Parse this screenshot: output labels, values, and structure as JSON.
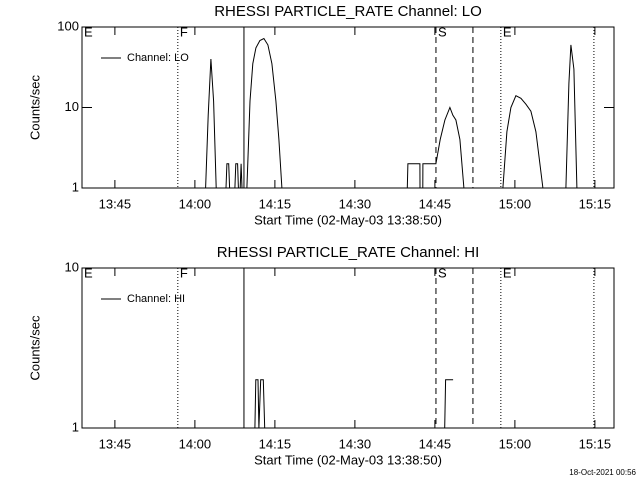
{
  "chart_data": [
    {
      "type": "line",
      "title": "RHESSI PARTICLE_RATE Channel: LO",
      "xlabel": "Start Time (02-May-03 13:38:50)",
      "ylabel": "Counts/sec",
      "log_y": true,
      "x": [
        "13:38:50",
        "14:02:00",
        "14:02:30",
        "14:03:00",
        "14:03:30",
        "14:04:00",
        "14:05:50",
        "14:06:00",
        "14:06:20",
        "14:06:30",
        "14:07:30",
        "14:07:40",
        "14:08:00",
        "14:08:10",
        "14:08:30",
        "14:08:40",
        "14:08:50",
        "14:09:45",
        "14:10:20",
        "14:10:52",
        "14:11:26",
        "14:12:11",
        "14:12:56",
        "14:13:41",
        "14:14:26",
        "14:15:11",
        "14:15:45",
        "14:16:19",
        "14:39:50",
        "14:39:56",
        "14:42:11",
        "14:42:12",
        "14:42:44",
        "14:42:45",
        "14:45:11",
        "14:46:00",
        "14:46:53",
        "14:47:49",
        "14:48:23",
        "14:48:56",
        "14:49:41",
        "14:50:26",
        "14:57:45",
        "14:58:30",
        "14:59:15",
        "15:00:11",
        "15:01:08",
        "15:02:04",
        "15:03:00",
        "15:03:56",
        "15:04:41",
        "15:05:15",
        "15:09:34",
        "15:10:08",
        "15:10:30",
        "15:11:04",
        "15:11:38",
        "15:18:35"
      ],
      "series": [
        {
          "name": "Channel: LO",
          "color": "#000000",
          "values": [
            1,
            1,
            8,
            40,
            12,
            1,
            1,
            2,
            2,
            1,
            1,
            2,
            2,
            1,
            1,
            2,
            1,
            1,
            12,
            35,
            55,
            68,
            72,
            60,
            35,
            12,
            4,
            1,
            1,
            2,
            2,
            1,
            1,
            2,
            2,
            4,
            7,
            10,
            8,
            7,
            4,
            1,
            1,
            5,
            10,
            14,
            13,
            11,
            9,
            5,
            2,
            1,
            1,
            20,
            60,
            30,
            1,
            1
          ]
        }
      ],
      "xlim": [
        "13:38:50",
        "15:18:35"
      ],
      "xticks": [
        "13:45",
        "14:00",
        "14:15",
        "14:30",
        "14:45",
        "15:00",
        "15:15"
      ],
      "ylim": [
        1,
        100
      ],
      "yticks": [
        1,
        10,
        100
      ],
      "markers": [
        {
          "x": "13:38:50",
          "style": "dotted",
          "label": "E"
        },
        {
          "x": "13:56:48",
          "style": "dotted",
          "label": "F"
        },
        {
          "x": "14:09:12",
          "style": "solid"
        },
        {
          "x": "14:45:12",
          "style": "dashed",
          "label": "S"
        },
        {
          "x": "14:52:08",
          "style": "dashed"
        },
        {
          "x": "14:57:22",
          "style": "dotted",
          "label": "E"
        },
        {
          "x": "15:14:49",
          "style": "dotted"
        }
      ]
    },
    {
      "type": "line",
      "title": "RHESSI PARTICLE_RATE Channel: HI",
      "xlabel": "Start Time (02-May-03 13:38:50)",
      "ylabel": "Counts/sec",
      "log_y": true,
      "x": [
        "13:38:50",
        "14:11:15",
        "14:11:25",
        "14:11:50",
        "14:12:00",
        "14:12:20",
        "14:12:50",
        "14:13:05",
        "14:46:50",
        "14:47:00",
        "14:48:25"
      ],
      "series": [
        {
          "name": "Channel: HI",
          "color": "#000000",
          "values": [
            1,
            1,
            2,
            2,
            1,
            2,
            2,
            1,
            1,
            2,
            2
          ]
        }
      ],
      "xlim": [
        "13:38:50",
        "15:18:35"
      ],
      "xticks": [
        "13:45",
        "14:00",
        "14:15",
        "14:30",
        "14:45",
        "15:00",
        "15:15"
      ],
      "ylim": [
        1,
        10
      ],
      "yticks": [
        1,
        10
      ],
      "markers": [
        {
          "x": "13:38:50",
          "style": "dotted",
          "label": "E"
        },
        {
          "x": "13:56:48",
          "style": "dotted",
          "label": "F"
        },
        {
          "x": "14:09:12",
          "style": "solid"
        },
        {
          "x": "14:45:12",
          "style": "dashed",
          "label": "S"
        },
        {
          "x": "14:52:08",
          "style": "dashed"
        },
        {
          "x": "14:57:22",
          "style": "dotted",
          "label": "E"
        },
        {
          "x": "15:14:49",
          "style": "dotted"
        }
      ]
    }
  ],
  "footer": "18-Oct-2021 00:56"
}
